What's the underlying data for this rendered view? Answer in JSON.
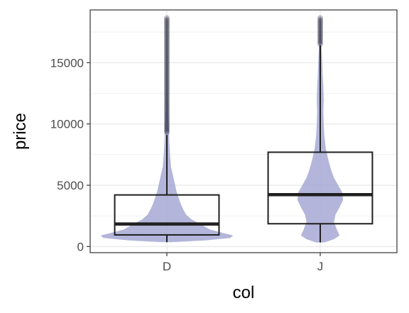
{
  "chart_data": {
    "type": "violin-box",
    "title": "",
    "xlabel": "col",
    "ylabel": "price",
    "categories": [
      "D",
      "J"
    ],
    "ylim": [
      -500,
      19300
    ],
    "y_ticks": [
      0,
      5000,
      10000,
      15000
    ],
    "y_tick_labels": [
      "0",
      "5000",
      "10000",
      "15000"
    ],
    "grid": true,
    "legend": "none",
    "colors": {
      "violin_fill": "#a6a8d3",
      "box_stroke": "#1f1f1f",
      "outlier": "#1a1a2a",
      "grid": "#ebebeb",
      "panel_border": "#333333"
    },
    "series": [
      {
        "category": "D",
        "box": {
          "q1": 950,
          "median": 1840,
          "q3": 4210,
          "whisker_low": 357,
          "whisker_high": 9100
        },
        "violin": [
          [
            350,
            0.06
          ],
          [
            500,
            0.55
          ],
          [
            700,
            0.92
          ],
          [
            900,
            0.96
          ],
          [
            1100,
            0.82
          ],
          [
            1400,
            0.62
          ],
          [
            1800,
            0.5
          ],
          [
            2200,
            0.36
          ],
          [
            2600,
            0.28
          ],
          [
            3000,
            0.24
          ],
          [
            3500,
            0.2
          ],
          [
            4000,
            0.17
          ],
          [
            4500,
            0.14
          ],
          [
            5000,
            0.12
          ],
          [
            5500,
            0.1
          ],
          [
            6000,
            0.08
          ],
          [
            6500,
            0.06
          ],
          [
            7500,
            0.045
          ],
          [
            8500,
            0.035
          ],
          [
            9500,
            0.03
          ],
          [
            11000,
            0.02
          ],
          [
            13000,
            0.013
          ],
          [
            15000,
            0.01
          ],
          [
            17000,
            0.008
          ],
          [
            18690,
            0.006
          ]
        ],
        "outliers_range": [
          9300,
          18700
        ]
      },
      {
        "category": "J",
        "box": {
          "q1": 1860,
          "median": 4234,
          "q3": 7695,
          "whisker_low": 335,
          "whisker_high": 16400
        },
        "violin": [
          [
            335,
            0.06
          ],
          [
            600,
            0.2
          ],
          [
            900,
            0.28
          ],
          [
            1400,
            0.24
          ],
          [
            2000,
            0.2
          ],
          [
            2600,
            0.22
          ],
          [
            3200,
            0.28
          ],
          [
            3800,
            0.33
          ],
          [
            4400,
            0.32
          ],
          [
            5000,
            0.26
          ],
          [
            5600,
            0.2
          ],
          [
            6200,
            0.16
          ],
          [
            7000,
            0.12
          ],
          [
            8000,
            0.08
          ],
          [
            9000,
            0.06
          ],
          [
            10000,
            0.05
          ],
          [
            11000,
            0.045
          ],
          [
            12000,
            0.05
          ],
          [
            13000,
            0.045
          ],
          [
            14000,
            0.035
          ],
          [
            15000,
            0.03
          ],
          [
            16000,
            0.022
          ],
          [
            17000,
            0.015
          ],
          [
            18000,
            0.01
          ],
          [
            18710,
            0.006
          ]
        ],
        "outliers_range": [
          16500,
          18710
        ]
      }
    ]
  }
}
